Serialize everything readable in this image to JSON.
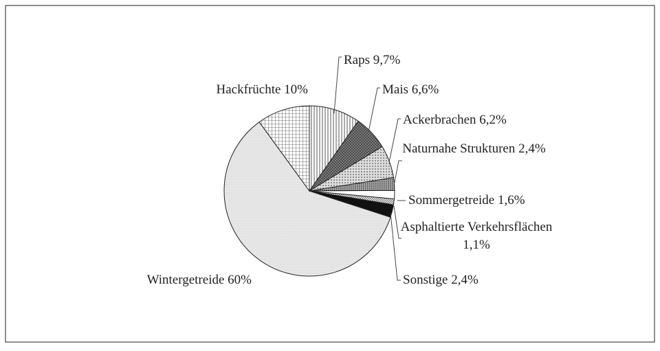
{
  "chart_data": {
    "type": "pie",
    "categories": [
      "Raps",
      "Mais",
      "Ackerbrachen",
      "Naturnahe Strukturen",
      "Sommergetreide",
      "Asphaltierte Verkehrsflächen",
      "Sonstige",
      "Wintergetreide",
      "Hackfrüchte"
    ],
    "values": [
      9.7,
      6.6,
      6.2,
      2.4,
      1.6,
      1.1,
      2.4,
      60,
      10
    ],
    "value_labels": [
      "9,7%",
      "6,6%",
      "6,2%",
      "2,4%",
      "1,6%",
      "1,1%",
      "2,4%",
      "60%",
      "10%"
    ]
  }
}
